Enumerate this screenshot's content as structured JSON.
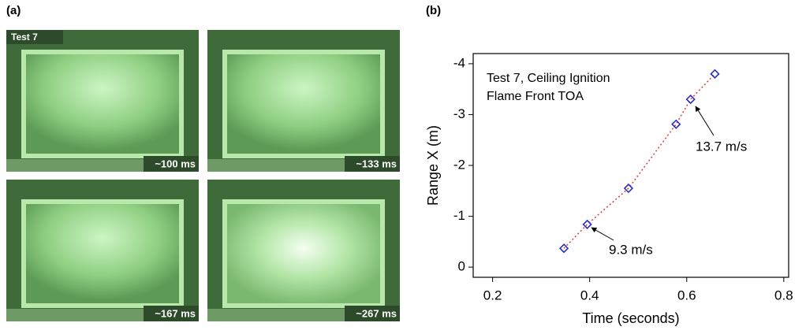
{
  "panel_a": {
    "label": "(a)",
    "photos": [
      {
        "tag": "Test 7",
        "time": "~100 ms"
      },
      {
        "time": "~133 ms"
      },
      {
        "time": "~167 ms"
      },
      {
        "time": "~267 ms"
      }
    ]
  },
  "chart_data": {
    "type": "scatter",
    "panel_label": "(b)",
    "annotations": [
      "Test 7, Ceiling Ignition",
      "Flame Front TOA",
      "9.3 m/s",
      "13.7 m/s"
    ],
    "x_label": "Time (seconds)",
    "y_label": "Range X (m)",
    "series": [
      {
        "color": "#2a2fc4",
        "line_color": "#e03a3a",
        "x": [
          0.347,
          0.395,
          0.48,
          0.578,
          0.608,
          0.658
        ],
        "values": [
          -0.37,
          -0.84,
          -1.55,
          -2.81,
          -3.3,
          -3.8
        ]
      }
    ],
    "xlim": [
      0.16,
      0.81
    ],
    "xticks": [
      0.2,
      0.4,
      0.6,
      0.8
    ],
    "ylim": [
      0.2,
      -4.2
    ],
    "yticks": [
      0,
      -1,
      -2,
      -3,
      -4
    ],
    "grid": false
  }
}
